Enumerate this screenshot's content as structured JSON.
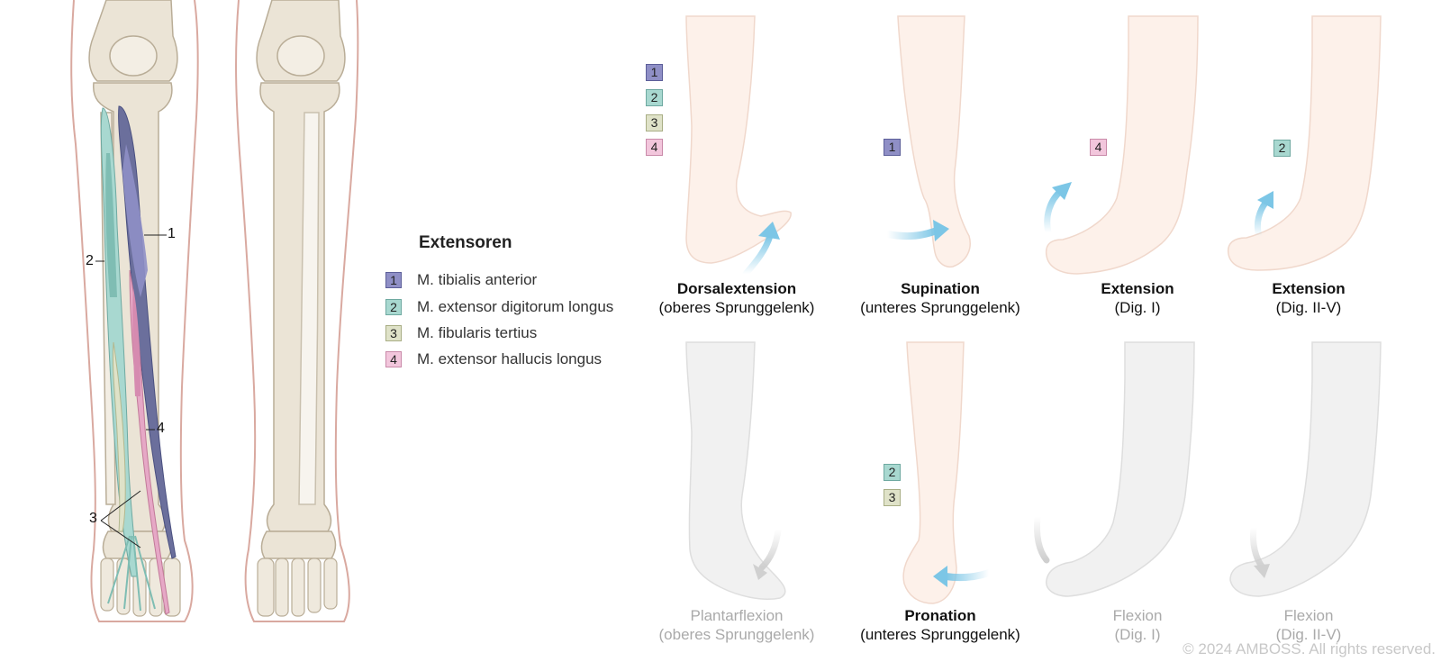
{
  "legend": {
    "title": "Extensoren",
    "items": [
      {
        "num": "1",
        "label": "M. tibialis anterior",
        "color": "#8f8fc6"
      },
      {
        "num": "2",
        "label": "M. extensor digitorum longus",
        "color": "#a8d8d0"
      },
      {
        "num": "3",
        "label": "M. fibularis tertius",
        "color": "#dfe2c8"
      },
      {
        "num": "4",
        "label": "M. extensor hallucis longus",
        "color": "#f2c6dc"
      }
    ]
  },
  "anatomy_labels": {
    "one": "1",
    "two": "2",
    "three": "3",
    "four": "4"
  },
  "movements": {
    "dorsal": {
      "title": "Dorsalextension",
      "sub": "(oberes Sprunggelenk)",
      "badges": [
        "1",
        "2",
        "3",
        "4"
      ]
    },
    "supination": {
      "title": "Supination",
      "sub": "(unteres Sprunggelenk)",
      "badges": [
        "1"
      ]
    },
    "ext_dig1": {
      "title": "Extension",
      "sub": "(Dig. I)",
      "badges": [
        "4"
      ]
    },
    "ext_dig25": {
      "title": "Extension",
      "sub": "(Dig. II-V)",
      "badges": [
        "2"
      ]
    },
    "plantar": {
      "title": "Plantarflexion",
      "sub": "(oberes Sprunggelenk)"
    },
    "pronation": {
      "title": "Pronation",
      "sub": "(unteres Sprunggelenk)",
      "badges": [
        "2",
        "3"
      ]
    },
    "flex_dig1": {
      "title": "Flexion",
      "sub": "(Dig. I)"
    },
    "flex_dig25": {
      "title": "Flexion",
      "sub": "(Dig. II-V)"
    }
  },
  "copyright": "© 2024 AMBOSS. All rights reserved.",
  "colors": {
    "bone": "#ebe4d6",
    "skin_outline": "#d9a9a0",
    "skin_fill_active": "#fdf1ea",
    "skin_fill_faded": "#f1f1f1",
    "arrow_active": "#7cc6e6",
    "arrow_faded": "#d6d6d6"
  }
}
